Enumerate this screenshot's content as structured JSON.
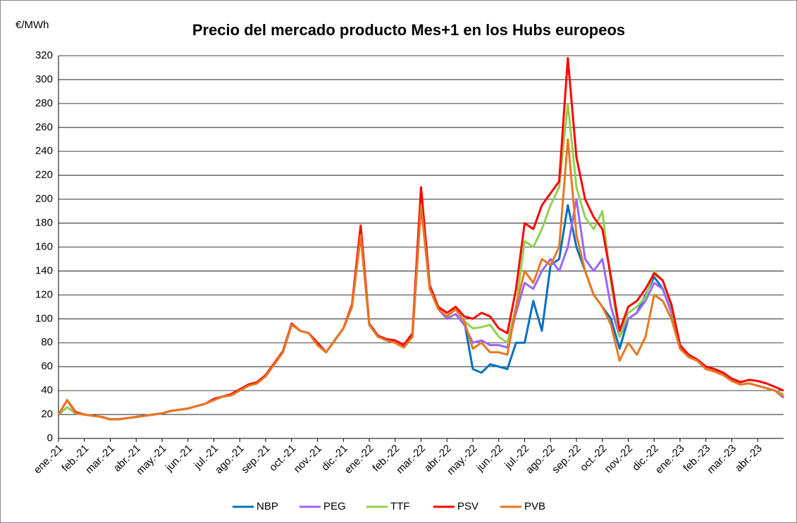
{
  "chart_data": {
    "type": "line",
    "title": "Precio del mercado producto Mes+1 en los Hubs europeos",
    "y_label": "€/MWh",
    "categories": [
      "ene.-21",
      null,
      null,
      "feb.-21",
      null,
      null,
      "mar.-21",
      null,
      null,
      "abr.-21",
      null,
      null,
      "may.-21",
      null,
      null,
      "jun.-21",
      null,
      null,
      "jul.-21",
      null,
      null,
      "ago.-21",
      null,
      null,
      "sep.-21",
      null,
      null,
      "oct.-21",
      null,
      null,
      "nov.-21",
      null,
      null,
      "dic.-21",
      null,
      null,
      "ene.-22",
      null,
      null,
      "feb.-22",
      null,
      null,
      "mar.-22",
      null,
      null,
      "abr.-22",
      null,
      null,
      "may.-22",
      null,
      null,
      "jun.-22",
      null,
      null,
      "jul.-22",
      null,
      null,
      "ago.-22",
      null,
      null,
      "sep.-22",
      null,
      null,
      "oct.-22",
      null,
      null,
      "nov.-22",
      null,
      null,
      "dic.-22",
      null,
      null,
      "ene.-23",
      null,
      null,
      "feb.-23",
      null,
      null,
      "mar.-23",
      null,
      null,
      "abr.-23",
      null,
      null,
      null
    ],
    "series": [
      {
        "name": "NBP",
        "color": "#0070c0",
        "values": [
          20,
          26,
          21,
          20,
          19,
          18,
          16,
          16,
          17,
          18,
          19,
          20,
          21,
          23,
          24,
          25,
          27,
          29,
          32,
          35,
          36,
          40,
          44,
          46,
          52,
          62,
          72,
          95,
          90,
          88,
          78,
          72,
          82,
          92,
          110,
          170,
          95,
          85,
          82,
          80,
          76,
          85,
          195,
          125,
          108,
          102,
          108,
          98,
          58,
          55,
          62,
          60,
          58,
          80,
          80,
          115,
          90,
          145,
          150,
          195,
          160,
          140,
          120,
          110,
          100,
          75,
          100,
          105,
          120,
          135,
          125,
          105,
          75,
          68,
          65,
          58,
          56,
          53,
          48,
          45,
          46,
          44,
          42,
          40,
          34
        ]
      },
      {
        "name": "PEG",
        "color": "#9966ff",
        "values": [
          20,
          26,
          21,
          20,
          19,
          18,
          16,
          16,
          17,
          18,
          19,
          20,
          21,
          23,
          24,
          25,
          27,
          29,
          32,
          35,
          36,
          40,
          44,
          46,
          52,
          62,
          72,
          95,
          90,
          88,
          78,
          72,
          82,
          92,
          110,
          170,
          95,
          85,
          82,
          80,
          76,
          85,
          195,
          125,
          108,
          100,
          104,
          95,
          80,
          82,
          78,
          78,
          76,
          105,
          130,
          125,
          140,
          150,
          140,
          160,
          200,
          150,
          140,
          150,
          110,
          85,
          100,
          105,
          115,
          130,
          125,
          105,
          75,
          68,
          65,
          58,
          56,
          53,
          48,
          45,
          46,
          44,
          42,
          40,
          34
        ]
      },
      {
        "name": "TTF",
        "color": "#92d050",
        "values": [
          20,
          26,
          21,
          20,
          19,
          18,
          16,
          16,
          17,
          18,
          19,
          20,
          21,
          23,
          24,
          25,
          27,
          29,
          32,
          35,
          36,
          40,
          44,
          46,
          52,
          62,
          72,
          95,
          90,
          88,
          78,
          72,
          82,
          92,
          110,
          170,
          95,
          85,
          82,
          80,
          76,
          85,
          195,
          125,
          108,
          102,
          108,
          98,
          92,
          93,
          95,
          85,
          80,
          110,
          165,
          160,
          175,
          195,
          210,
          280,
          210,
          185,
          175,
          190,
          130,
          85,
          105,
          110,
          118,
          140,
          132,
          110,
          75,
          68,
          65,
          58,
          56,
          53,
          48,
          45,
          46,
          44,
          42,
          40,
          37
        ]
      },
      {
        "name": "PSV",
        "color": "#ff0000",
        "values": [
          20,
          32,
          22,
          20,
          19,
          18,
          16,
          16,
          17,
          18,
          19,
          20,
          21,
          23,
          24,
          25,
          27,
          29,
          33,
          35,
          37,
          41,
          45,
          47,
          53,
          63,
          73,
          96,
          90,
          88,
          80,
          72,
          82,
          92,
          112,
          178,
          96,
          86,
          83,
          82,
          78,
          88,
          210,
          128,
          110,
          105,
          110,
          102,
          100,
          105,
          102,
          92,
          88,
          125,
          180,
          175,
          195,
          205,
          215,
          318,
          235,
          200,
          185,
          175,
          135,
          90,
          110,
          115,
          125,
          138,
          132,
          112,
          78,
          70,
          66,
          60,
          58,
          55,
          50,
          47,
          49,
          48,
          46,
          43,
          40
        ]
      },
      {
        "name": "PVB",
        "color": "#e87722",
        "values": [
          20,
          32,
          21,
          20,
          19,
          18,
          16,
          16,
          17,
          18,
          19,
          20,
          21,
          23,
          24,
          25,
          27,
          29,
          32,
          35,
          36,
          40,
          44,
          46,
          52,
          62,
          72,
          95,
          90,
          88,
          78,
          72,
          82,
          92,
          110,
          170,
          95,
          85,
          82,
          80,
          76,
          85,
          195,
          125,
          108,
          102,
          108,
          98,
          75,
          80,
          72,
          72,
          70,
          110,
          140,
          130,
          150,
          145,
          160,
          250,
          170,
          140,
          120,
          110,
          95,
          65,
          80,
          70,
          85,
          120,
          115,
          100,
          75,
          68,
          65,
          58,
          56,
          53,
          48,
          45,
          46,
          44,
          42,
          40,
          35
        ]
      }
    ],
    "ylim": [
      0,
      320
    ],
    "yticks": [
      0,
      20,
      40,
      60,
      80,
      100,
      120,
      140,
      160,
      180,
      200,
      220,
      240,
      260,
      280,
      300,
      320
    ],
    "grid": true,
    "legend": "bottom"
  }
}
